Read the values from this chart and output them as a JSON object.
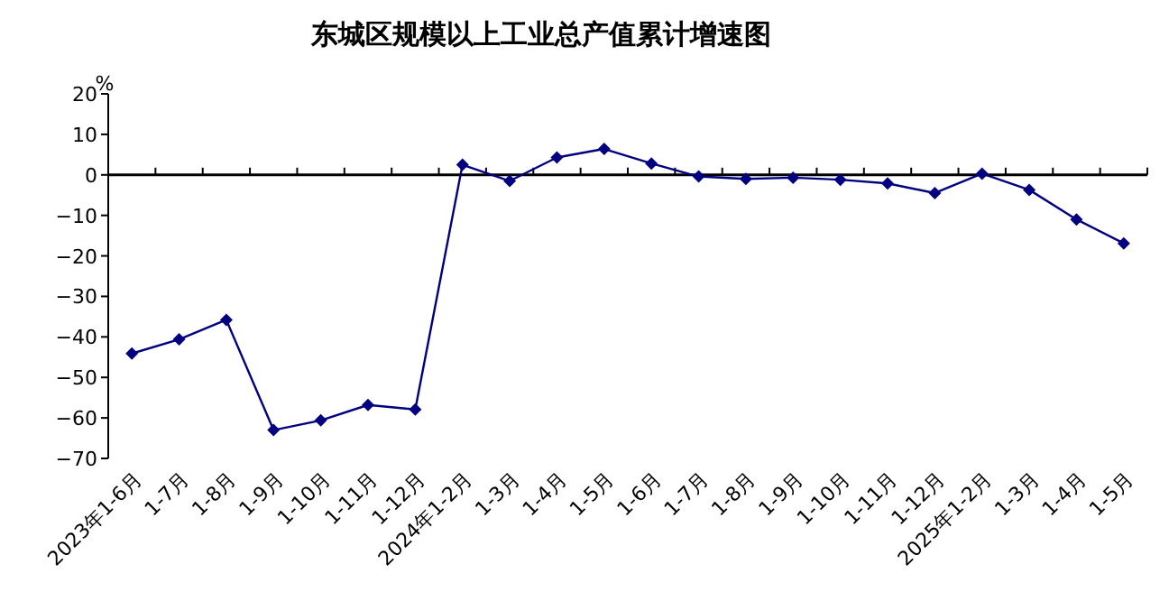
{
  "chart_data": {
    "type": "line",
    "title": "东城区规模以上工业总产值累计增速图",
    "ylabel": "%",
    "categories": [
      "2023年1-6月",
      "1-7月",
      "1-8月",
      "1-9月",
      "1-10月",
      "1-11月",
      "1-12月",
      "2024年1-2月",
      "1-3月",
      "1-4月",
      "1-5月",
      "1-6月",
      "1-7月",
      "1-8月",
      "1-9月",
      "1-10月",
      "1-11月",
      "1-12月",
      "2025年1-2月",
      "1-3月",
      "1-4月",
      "1-5月"
    ],
    "series": [
      {
        "color": "#000080",
        "values": [
          -44.1,
          -40.6,
          -35.8,
          -63.0,
          -60.6,
          -56.8,
          -57.9,
          2.5,
          -1.5,
          4.3,
          6.4,
          2.8,
          -0.4,
          -1.0,
          -0.7,
          -1.2,
          -2.1,
          -4.5,
          0.3,
          -3.7,
          -11.0,
          -16.9
        ]
      }
    ],
    "ylim": [
      -70,
      20
    ],
    "yticks": [
      -70,
      -60,
      -50,
      -40,
      -30,
      -20,
      -10,
      0,
      10,
      20
    ],
    "marker": "diamond",
    "line_style": "solid"
  }
}
